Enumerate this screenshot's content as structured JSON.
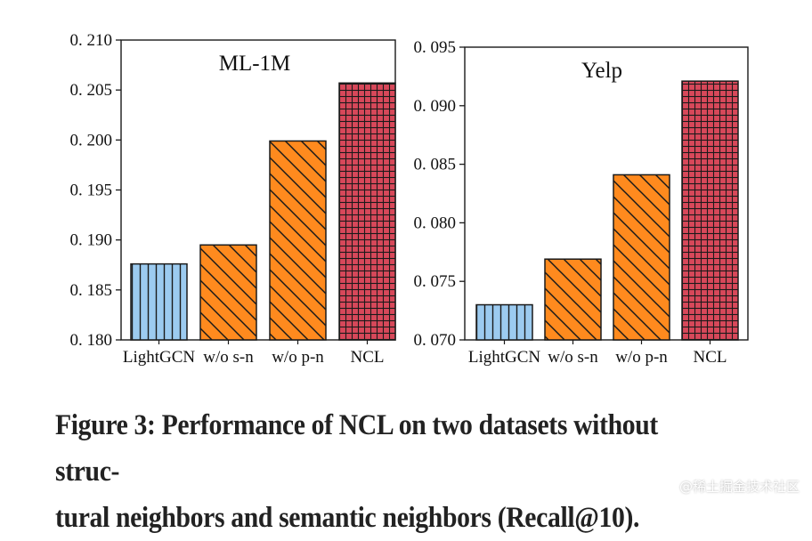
{
  "chart_data": [
    {
      "type": "bar",
      "title": "ML-1M",
      "categories": [
        "LightGCN",
        "w/o s-n",
        "w/o p-n",
        "NCL"
      ],
      "values": [
        0.1876,
        0.1895,
        0.1999,
        0.2057
      ],
      "ylim": [
        0.18,
        0.21
      ],
      "yticks": [
        0.18,
        0.185,
        0.19,
        0.195,
        0.2,
        0.205,
        0.21
      ],
      "ytick_labels": [
        "0. 180",
        "0. 185",
        "0. 190",
        "0. 195",
        "0. 200",
        "0. 205",
        "0. 210"
      ],
      "xlabel": "",
      "ylabel": "",
      "grid": false,
      "legend": null
    },
    {
      "type": "bar",
      "title": "Yelp",
      "categories": [
        "LightGCN",
        "w/o s-n",
        "w/o p-n",
        "NCL"
      ],
      "values": [
        0.073,
        0.0769,
        0.0841,
        0.0921
      ],
      "ylim": [
        0.07,
        0.095
      ],
      "yticks": [
        0.07,
        0.075,
        0.08,
        0.085,
        0.09,
        0.095
      ],
      "ytick_labels": [
        "0. 070",
        "0. 075",
        "0. 080",
        "0. 085",
        "0. 090",
        "0. 095"
      ],
      "xlabel": "",
      "ylabel": "",
      "grid": false,
      "legend": null
    }
  ],
  "bar_styles": [
    {
      "fill": "#9ccbf0",
      "hatch": "vertical"
    },
    {
      "fill": "#ff8a1e",
      "hatch": "diagonal"
    },
    {
      "fill": "#ff8a1e",
      "hatch": "diagonal"
    },
    {
      "fill": "#d8485a",
      "hatch": "grid"
    }
  ],
  "caption": {
    "line1": "Figure 3: Performance of NCL on two datasets without struc-",
    "line2": "tural neighbors and semantic neighbors (Recall@10)."
  },
  "watermark": "@稀土掘金技术社区"
}
